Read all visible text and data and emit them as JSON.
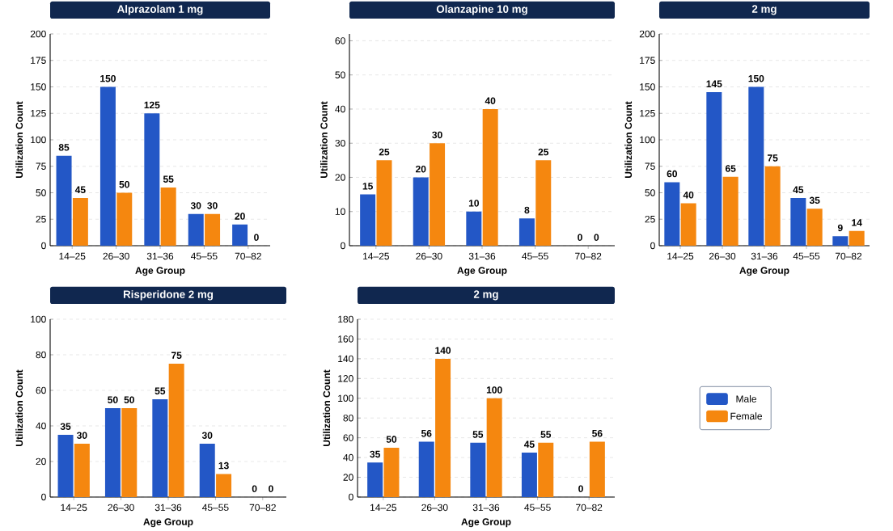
{
  "chart_data": [
    {
      "type": "bar",
      "title": "Alprazolam 1 mg",
      "xlabel": "Age Group",
      "ylabel": "Utilization Count",
      "categories": [
        "14–25",
        "26–30",
        "31–36",
        "45–55",
        "70–82"
      ],
      "series": [
        {
          "color": "#2357c6",
          "values": [
            85,
            150,
            125,
            30,
            20
          ]
        },
        {
          "color": "#f5870f",
          "values": [
            45,
            50,
            55,
            30,
            0
          ]
        }
      ],
      "ylim": [
        0,
        200
      ],
      "yticks": [
        0,
        25,
        50,
        75,
        100,
        125,
        150,
        175,
        200
      ],
      "grid": "y",
      "data_labels": true
    },
    {
      "type": "bar",
      "title": "Olanzapine 10 mg",
      "xlabel": "Age Group",
      "ylabel": "Utilization Count",
      "categories": [
        "14–25",
        "26–30",
        "31–36",
        "45–55",
        "70–82"
      ],
      "series": [
        {
          "color": "#2357c6",
          "values": [
            15,
            20,
            10,
            8,
            0
          ]
        },
        {
          "color": "#f5870f",
          "values": [
            25,
            30,
            40,
            25,
            0
          ]
        }
      ],
      "ylim": [
        0,
        62
      ],
      "yticks": [
        0,
        10,
        20,
        30,
        40,
        50,
        60
      ],
      "grid": "y",
      "data_labels": true
    },
    {
      "type": "bar",
      "title": "2 mg",
      "xlabel": "Age Group",
      "ylabel": "Utilization Count",
      "categories": [
        "14–25",
        "26–30",
        "31–36",
        "45–55",
        "70–82"
      ],
      "series": [
        {
          "color": "#2357c6",
          "values": [
            60,
            145,
            150,
            45,
            9
          ]
        },
        {
          "color": "#f5870f",
          "values": [
            40,
            65,
            75,
            35,
            14
          ]
        }
      ],
      "ylim": [
        0,
        200
      ],
      "yticks": [
        0,
        25,
        50,
        75,
        100,
        125,
        150,
        175,
        200
      ],
      "grid": "y",
      "data_labels": true
    },
    {
      "type": "bar",
      "title": "Risperidone 2 mg",
      "xlabel": "Age Group",
      "ylabel": "Utilization Count",
      "categories": [
        "14–25",
        "26–30",
        "31–36",
        "45–55",
        "70–82"
      ],
      "series": [
        {
          "color": "#2357c6",
          "values": [
            35,
            50,
            55,
            30,
            0
          ]
        },
        {
          "color": "#f5870f",
          "values": [
            30,
            50,
            75,
            13,
            0
          ]
        }
      ],
      "ylim": [
        0,
        100
      ],
      "yticks": [
        0,
        20,
        40,
        60,
        80,
        100
      ],
      "grid": "y",
      "data_labels": true
    },
    {
      "type": "bar",
      "title": "2 mg",
      "xlabel": "Age Group",
      "ylabel": "Utilization Count",
      "categories": [
        "14–25",
        "26–30",
        "31–36",
        "45–55",
        "70–82"
      ],
      "series": [
        {
          "name": "Male",
          "color": "#2357c6",
          "values": [
            35,
            56,
            55,
            45,
            0
          ]
        },
        {
          "name": "Female",
          "color": "#f5870f",
          "values": [
            50,
            140,
            100,
            55,
            56
          ]
        }
      ],
      "ylim": [
        0,
        180
      ],
      "yticks": [
        0,
        20,
        40,
        60,
        80,
        100,
        120,
        140,
        160,
        180
      ],
      "grid": "y",
      "legend": "right",
      "data_labels": true
    }
  ]
}
